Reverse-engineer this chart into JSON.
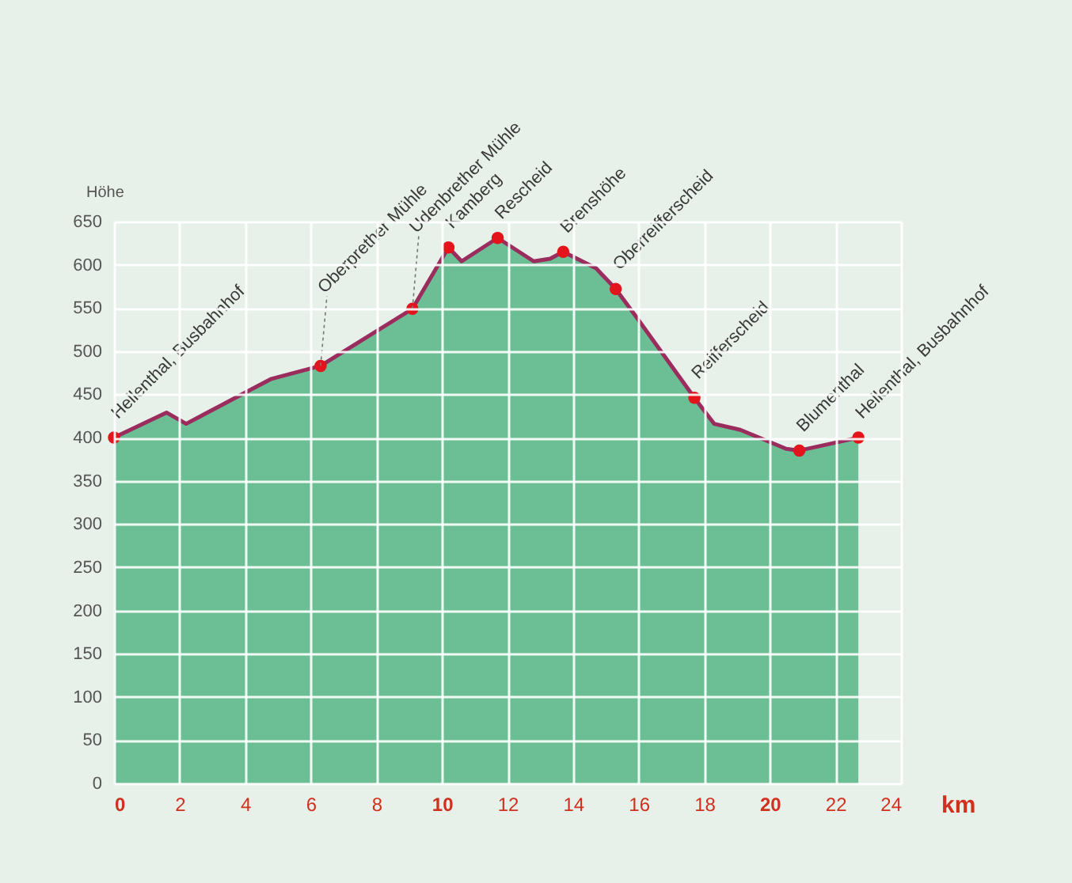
{
  "chart_data": {
    "type": "area",
    "xlabel": "km",
    "ylabel": "Höhe",
    "xlim": [
      0,
      24
    ],
    "xticks": [
      0,
      2,
      4,
      6,
      8,
      10,
      12,
      14,
      16,
      18,
      20,
      22,
      24
    ],
    "ylim": [
      0,
      650
    ],
    "yticks": [
      0,
      50,
      100,
      150,
      200,
      250,
      300,
      350,
      400,
      450,
      500,
      550,
      600,
      650
    ],
    "grid": true,
    "series": [
      {
        "type": "area",
        "color": "#6cbf95",
        "x": [
          0,
          1.6,
          2.2,
          3.7,
          4.8,
          6.3,
          9.1,
          10.2,
          10.6,
          11.7,
          12.8,
          13.3,
          13.7,
          14.7,
          15.3,
          15.9,
          17.7,
          18.3,
          19.1,
          20.5,
          20.9,
          22.7
        ],
        "values": [
          400,
          429,
          416,
          446,
          468,
          483,
          549,
          620,
          604,
          631,
          604,
          607,
          615,
          596,
          572,
          541,
          446,
          416,
          409,
          387,
          385,
          400
        ]
      },
      {
        "type": "line",
        "color": "#9b2c5e",
        "x": [
          0,
          1.6,
          2.2,
          3.7,
          4.8,
          6.3,
          9.1,
          10.2,
          10.6,
          11.7,
          12.8,
          13.3,
          13.7,
          14.7,
          15.3,
          15.9,
          17.7,
          18.3,
          19.1,
          20.5,
          20.9,
          22.7
        ],
        "values": [
          400,
          429,
          416,
          446,
          468,
          483,
          549,
          620,
          604,
          631,
          604,
          607,
          615,
          596,
          572,
          541,
          446,
          416,
          409,
          387,
          385,
          400
        ]
      },
      {
        "type": "scatter",
        "color": "#e3141b",
        "x": [
          0,
          6.3,
          9.1,
          10.2,
          11.7,
          13.7,
          15.3,
          17.7,
          20.9,
          22.7
        ],
        "values": [
          400,
          483,
          549,
          620,
          631,
          615,
          572,
          446,
          385,
          400
        ]
      }
    ],
    "annotations": [
      {
        "text": "Hellenthal, Busbahnhof",
        "x": 0,
        "y": 400
      },
      {
        "text": "Oberprether Mühle",
        "x": 6.3,
        "y": 483
      },
      {
        "text": "Udenbrether Mühle",
        "x": 9.1,
        "y": 549
      },
      {
        "text": "Kamberg",
        "x": 10.2,
        "y": 620
      },
      {
        "text": "Rescheid",
        "x": 11.7,
        "y": 631
      },
      {
        "text": "Brenshöhe",
        "x": 13.7,
        "y": 615
      },
      {
        "text": "Oberreifferscheid",
        "x": 15.3,
        "y": 572
      },
      {
        "text": "Reifferscheid",
        "x": 17.7,
        "y": 446
      },
      {
        "text": "Blumenthal",
        "x": 20.9,
        "y": 385
      },
      {
        "text": "Hellenthal, Busbahnhof",
        "x": 22.7,
        "y": 400
      }
    ]
  }
}
